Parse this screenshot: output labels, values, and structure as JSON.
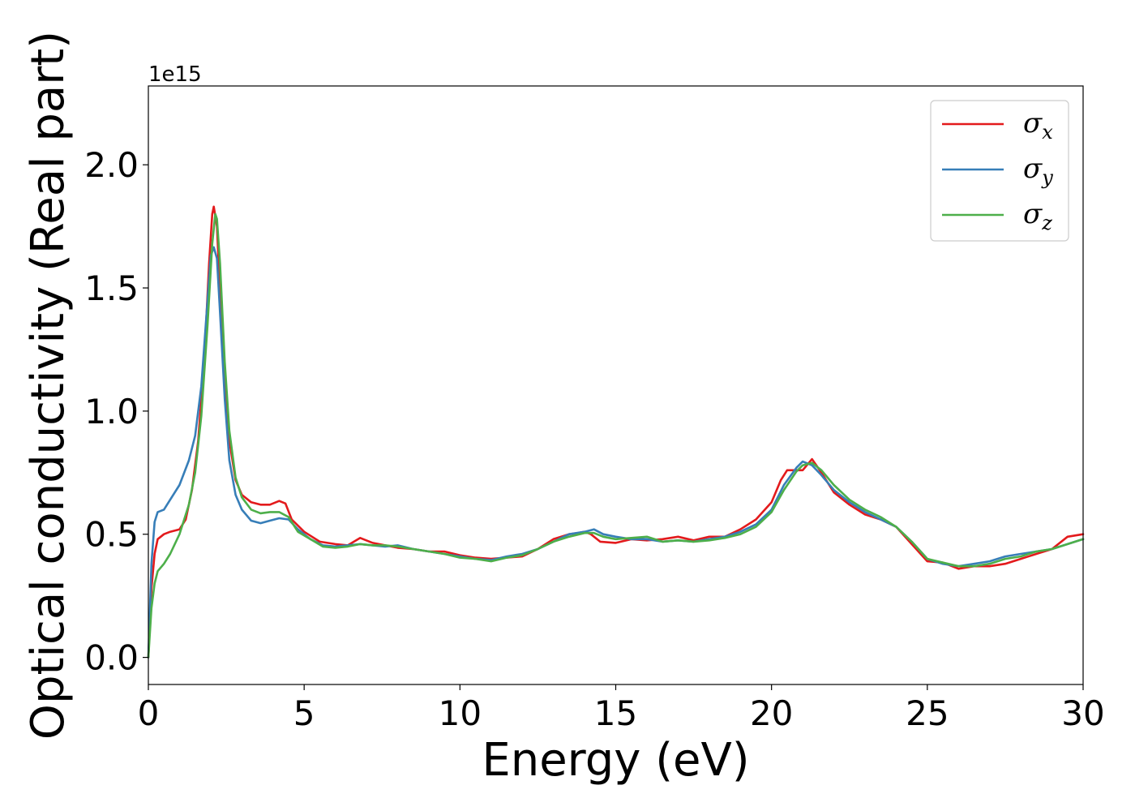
{
  "chart_data": {
    "type": "line",
    "title": "",
    "xlabel": "Energy (eV)",
    "ylabel": "Optical conductivity (Real part)",
    "y_offset_label": "1e15",
    "xlim": [
      0,
      30
    ],
    "ylim": [
      -0.11,
      2.32
    ],
    "xticks": [
      0,
      5,
      10,
      15,
      20,
      25,
      30
    ],
    "xtick_labels": [
      "0",
      "5",
      "10",
      "15",
      "20",
      "25",
      "30"
    ],
    "yticks": [
      0.0,
      0.5,
      1.0,
      1.5,
      2.0
    ],
    "ytick_labels": [
      "0.0",
      "0.5",
      "1.0",
      "1.5",
      "2.0"
    ],
    "grid": false,
    "legend_position": "top-right",
    "series": [
      {
        "name": "σx",
        "symbol": "σ",
        "sub": "x",
        "color": "#e31a1c",
        "points": [
          [
            0,
            0
          ],
          [
            0.1,
            0.28
          ],
          [
            0.2,
            0.42
          ],
          [
            0.3,
            0.48
          ],
          [
            0.5,
            0.5
          ],
          [
            0.7,
            0.51
          ],
          [
            1.0,
            0.52
          ],
          [
            1.2,
            0.56
          ],
          [
            1.4,
            0.68
          ],
          [
            1.6,
            0.88
          ],
          [
            1.8,
            1.22
          ],
          [
            1.95,
            1.6
          ],
          [
            2.05,
            1.8
          ],
          [
            2.1,
            1.83
          ],
          [
            2.2,
            1.75
          ],
          [
            2.3,
            1.48
          ],
          [
            2.45,
            1.12
          ],
          [
            2.6,
            0.88
          ],
          [
            2.8,
            0.72
          ],
          [
            3.0,
            0.66
          ],
          [
            3.3,
            0.63
          ],
          [
            3.6,
            0.62
          ],
          [
            3.9,
            0.62
          ],
          [
            4.2,
            0.635
          ],
          [
            4.4,
            0.625
          ],
          [
            4.6,
            0.56
          ],
          [
            5.0,
            0.51
          ],
          [
            5.5,
            0.47
          ],
          [
            6.0,
            0.46
          ],
          [
            6.4,
            0.455
          ],
          [
            6.8,
            0.485
          ],
          [
            7.2,
            0.465
          ],
          [
            7.6,
            0.455
          ],
          [
            8.0,
            0.445
          ],
          [
            8.5,
            0.44
          ],
          [
            9.0,
            0.43
          ],
          [
            9.5,
            0.43
          ],
          [
            10.0,
            0.415
          ],
          [
            10.5,
            0.405
          ],
          [
            11.0,
            0.4
          ],
          [
            11.5,
            0.405
          ],
          [
            12.0,
            0.41
          ],
          [
            12.5,
            0.44
          ],
          [
            13.0,
            0.48
          ],
          [
            13.5,
            0.5
          ],
          [
            13.8,
            0.505
          ],
          [
            14.0,
            0.51
          ],
          [
            14.2,
            0.5
          ],
          [
            14.5,
            0.47
          ],
          [
            15.0,
            0.465
          ],
          [
            15.5,
            0.48
          ],
          [
            16.0,
            0.475
          ],
          [
            16.5,
            0.48
          ],
          [
            17.0,
            0.49
          ],
          [
            17.5,
            0.475
          ],
          [
            18.0,
            0.49
          ],
          [
            18.5,
            0.49
          ],
          [
            19.0,
            0.52
          ],
          [
            19.5,
            0.56
          ],
          [
            20.0,
            0.63
          ],
          [
            20.3,
            0.72
          ],
          [
            20.5,
            0.76
          ],
          [
            20.8,
            0.76
          ],
          [
            21.0,
            0.76
          ],
          [
            21.3,
            0.805
          ],
          [
            21.6,
            0.75
          ],
          [
            22.0,
            0.67
          ],
          [
            22.5,
            0.62
          ],
          [
            23.0,
            0.58
          ],
          [
            23.5,
            0.56
          ],
          [
            24.0,
            0.53
          ],
          [
            24.5,
            0.46
          ],
          [
            25.0,
            0.39
          ],
          [
            25.5,
            0.385
          ],
          [
            26.0,
            0.36
          ],
          [
            26.5,
            0.37
          ],
          [
            27.0,
            0.37
          ],
          [
            27.5,
            0.38
          ],
          [
            28.0,
            0.4
          ],
          [
            28.5,
            0.42
          ],
          [
            29.0,
            0.44
          ],
          [
            29.5,
            0.49
          ],
          [
            30.0,
            0.5
          ]
        ]
      },
      {
        "name": "σy",
        "symbol": "σ",
        "sub": "y",
        "color": "#377eb8",
        "points": [
          [
            0,
            0
          ],
          [
            0.1,
            0.38
          ],
          [
            0.2,
            0.55
          ],
          [
            0.3,
            0.59
          ],
          [
            0.5,
            0.6
          ],
          [
            0.7,
            0.64
          ],
          [
            1.0,
            0.7
          ],
          [
            1.3,
            0.8
          ],
          [
            1.5,
            0.9
          ],
          [
            1.7,
            1.1
          ],
          [
            1.9,
            1.45
          ],
          [
            2.0,
            1.63
          ],
          [
            2.1,
            1.665
          ],
          [
            2.2,
            1.62
          ],
          [
            2.3,
            1.4
          ],
          [
            2.45,
            1.05
          ],
          [
            2.6,
            0.8
          ],
          [
            2.8,
            0.66
          ],
          [
            3.0,
            0.6
          ],
          [
            3.3,
            0.555
          ],
          [
            3.6,
            0.545
          ],
          [
            3.9,
            0.555
          ],
          [
            4.2,
            0.565
          ],
          [
            4.5,
            0.56
          ],
          [
            4.8,
            0.52
          ],
          [
            5.2,
            0.48
          ],
          [
            5.6,
            0.455
          ],
          [
            6.0,
            0.45
          ],
          [
            6.4,
            0.455
          ],
          [
            6.8,
            0.46
          ],
          [
            7.2,
            0.455
          ],
          [
            7.6,
            0.45
          ],
          [
            8.0,
            0.455
          ],
          [
            8.5,
            0.44
          ],
          [
            9.0,
            0.43
          ],
          [
            9.5,
            0.42
          ],
          [
            10.0,
            0.41
          ],
          [
            10.5,
            0.4
          ],
          [
            11.0,
            0.395
          ],
          [
            11.5,
            0.41
          ],
          [
            12.0,
            0.42
          ],
          [
            12.5,
            0.44
          ],
          [
            13.0,
            0.47
          ],
          [
            13.5,
            0.5
          ],
          [
            14.0,
            0.51
          ],
          [
            14.3,
            0.52
          ],
          [
            14.6,
            0.5
          ],
          [
            15.0,
            0.49
          ],
          [
            15.5,
            0.48
          ],
          [
            16.0,
            0.48
          ],
          [
            16.5,
            0.47
          ],
          [
            17.0,
            0.475
          ],
          [
            17.5,
            0.47
          ],
          [
            18.0,
            0.48
          ],
          [
            18.5,
            0.49
          ],
          [
            19.0,
            0.51
          ],
          [
            19.5,
            0.54
          ],
          [
            20.0,
            0.6
          ],
          [
            20.4,
            0.7
          ],
          [
            20.8,
            0.77
          ],
          [
            21.0,
            0.795
          ],
          [
            21.3,
            0.78
          ],
          [
            21.6,
            0.74
          ],
          [
            22.0,
            0.68
          ],
          [
            22.5,
            0.63
          ],
          [
            23.0,
            0.59
          ],
          [
            23.5,
            0.56
          ],
          [
            24.0,
            0.53
          ],
          [
            24.5,
            0.47
          ],
          [
            25.0,
            0.4
          ],
          [
            25.5,
            0.38
          ],
          [
            26.0,
            0.37
          ],
          [
            26.5,
            0.38
          ],
          [
            27.0,
            0.39
          ],
          [
            27.5,
            0.41
          ],
          [
            28.0,
            0.42
          ],
          [
            28.5,
            0.43
          ],
          [
            29.0,
            0.44
          ],
          [
            29.5,
            0.46
          ],
          [
            30.0,
            0.48
          ]
        ]
      },
      {
        "name": "σz",
        "symbol": "σ",
        "sub": "z",
        "color": "#4daf4a",
        "points": [
          [
            0,
            0
          ],
          [
            0.1,
            0.2
          ],
          [
            0.2,
            0.3
          ],
          [
            0.3,
            0.35
          ],
          [
            0.5,
            0.38
          ],
          [
            0.7,
            0.42
          ],
          [
            1.0,
            0.5
          ],
          [
            1.3,
            0.62
          ],
          [
            1.5,
            0.75
          ],
          [
            1.7,
            0.98
          ],
          [
            1.9,
            1.35
          ],
          [
            2.05,
            1.68
          ],
          [
            2.15,
            1.8
          ],
          [
            2.2,
            1.78
          ],
          [
            2.3,
            1.6
          ],
          [
            2.45,
            1.2
          ],
          [
            2.6,
            0.92
          ],
          [
            2.8,
            0.73
          ],
          [
            3.0,
            0.65
          ],
          [
            3.3,
            0.6
          ],
          [
            3.6,
            0.585
          ],
          [
            3.9,
            0.59
          ],
          [
            4.2,
            0.59
          ],
          [
            4.5,
            0.57
          ],
          [
            4.8,
            0.51
          ],
          [
            5.2,
            0.48
          ],
          [
            5.6,
            0.45
          ],
          [
            6.0,
            0.445
          ],
          [
            6.4,
            0.45
          ],
          [
            6.8,
            0.46
          ],
          [
            7.2,
            0.455
          ],
          [
            7.6,
            0.455
          ],
          [
            8.0,
            0.45
          ],
          [
            8.5,
            0.44
          ],
          [
            9.0,
            0.43
          ],
          [
            9.5,
            0.42
          ],
          [
            10.0,
            0.405
          ],
          [
            10.5,
            0.4
          ],
          [
            11.0,
            0.39
          ],
          [
            11.5,
            0.405
          ],
          [
            12.0,
            0.415
          ],
          [
            12.5,
            0.44
          ],
          [
            13.0,
            0.47
          ],
          [
            13.5,
            0.49
          ],
          [
            14.0,
            0.505
          ],
          [
            14.3,
            0.505
          ],
          [
            14.6,
            0.49
          ],
          [
            15.0,
            0.48
          ],
          [
            15.5,
            0.485
          ],
          [
            16.0,
            0.49
          ],
          [
            16.5,
            0.47
          ],
          [
            17.0,
            0.475
          ],
          [
            17.5,
            0.47
          ],
          [
            18.0,
            0.475
          ],
          [
            18.5,
            0.485
          ],
          [
            19.0,
            0.5
          ],
          [
            19.5,
            0.53
          ],
          [
            20.0,
            0.59
          ],
          [
            20.4,
            0.68
          ],
          [
            20.8,
            0.755
          ],
          [
            21.0,
            0.78
          ],
          [
            21.3,
            0.79
          ],
          [
            21.6,
            0.76
          ],
          [
            22.0,
            0.7
          ],
          [
            22.5,
            0.64
          ],
          [
            23.0,
            0.6
          ],
          [
            23.5,
            0.57
          ],
          [
            24.0,
            0.53
          ],
          [
            24.5,
            0.47
          ],
          [
            25.0,
            0.4
          ],
          [
            25.5,
            0.385
          ],
          [
            26.0,
            0.37
          ],
          [
            26.5,
            0.37
          ],
          [
            27.0,
            0.38
          ],
          [
            27.5,
            0.4
          ],
          [
            28.0,
            0.41
          ],
          [
            28.5,
            0.43
          ],
          [
            29.0,
            0.44
          ],
          [
            29.5,
            0.46
          ],
          [
            30.0,
            0.48
          ]
        ]
      }
    ]
  }
}
